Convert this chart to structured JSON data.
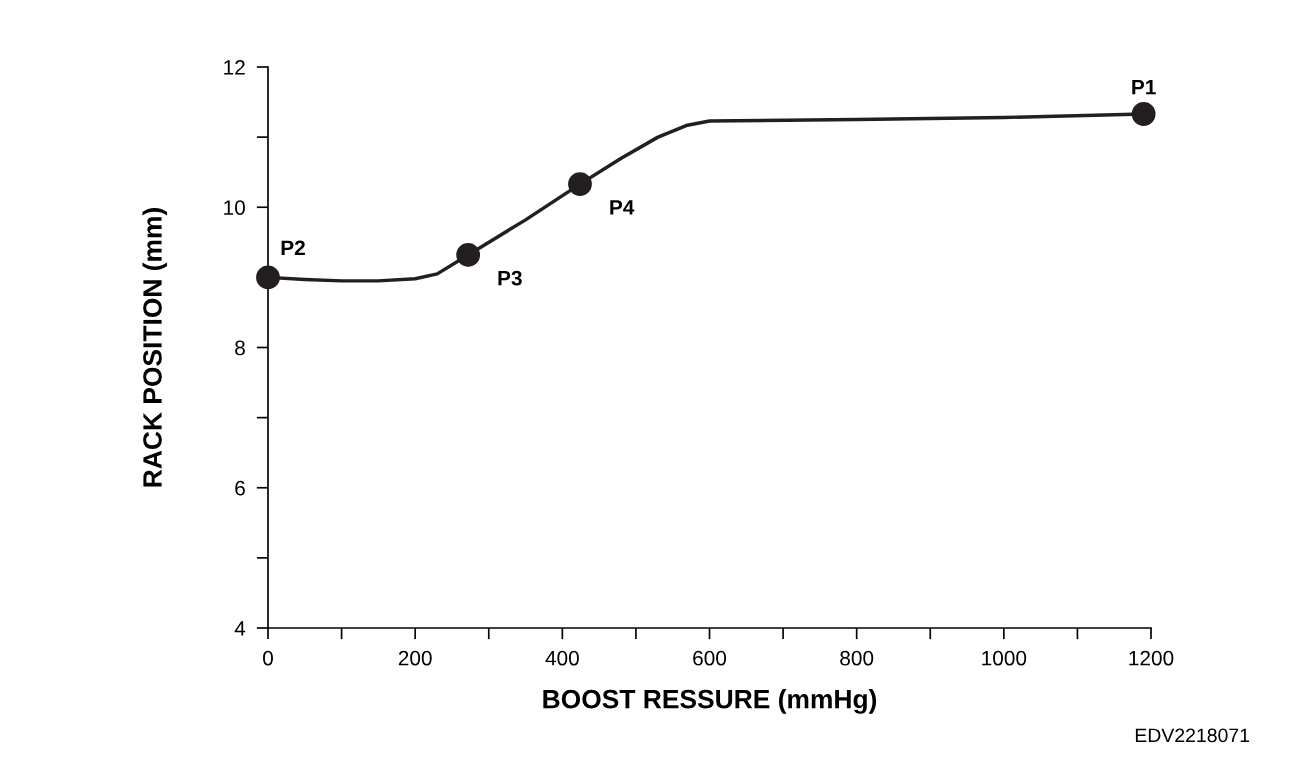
{
  "chart_data": {
    "type": "line",
    "xlabel": "BOOST RESSURE (mmHg)",
    "ylabel": "RACK POSITION (mm)",
    "series": [
      {
        "color": "#231f20",
        "marker": "none",
        "x": [
          0,
          50,
          100,
          150,
          200,
          230,
          272,
          350,
          424,
          480,
          530,
          570,
          600,
          800,
          1000,
          1190
        ],
        "values": [
          9.0,
          8.97,
          8.95,
          8.95,
          8.98,
          9.05,
          9.32,
          9.82,
          10.33,
          10.7,
          11.0,
          11.17,
          11.23,
          11.25,
          11.28,
          11.33
        ]
      },
      {
        "type": "scatter",
        "color": "#231f20",
        "marker": "circle",
        "x": [
          1190,
          0,
          272,
          424
        ],
        "values": [
          11.33,
          9.0,
          9.32,
          10.33
        ]
      }
    ],
    "annotations": [
      {
        "text": "P1",
        "x": 1190,
        "y": 11.33
      },
      {
        "text": "P2",
        "x": 0,
        "y": 9.0
      },
      {
        "text": "P3",
        "x": 272,
        "y": 9.32
      },
      {
        "text": "P4",
        "x": 424,
        "y": 10.33
      },
      "EDV2218071"
    ],
    "xlim": [
      0,
      1200
    ],
    "ylim": [
      4,
      12
    ],
    "xticks": [
      0,
      {
        "value": 100,
        "label": null
      },
      200,
      {
        "value": 300,
        "label": null
      },
      400,
      {
        "value": 500,
        "label": null
      },
      600,
      {
        "value": 700,
        "label": null
      },
      800,
      {
        "value": 900,
        "label": null
      },
      1000,
      {
        "value": 1100,
        "label": null
      },
      1200
    ],
    "yticks": [
      4,
      {
        "value": 5,
        "label": null
      },
      6,
      {
        "value": 7,
        "label": null
      },
      8,
      {
        "value": 9,
        "label": null
      },
      10,
      {
        "value": 11,
        "label": null
      },
      12
    ],
    "grid": false,
    "legend": false
  }
}
